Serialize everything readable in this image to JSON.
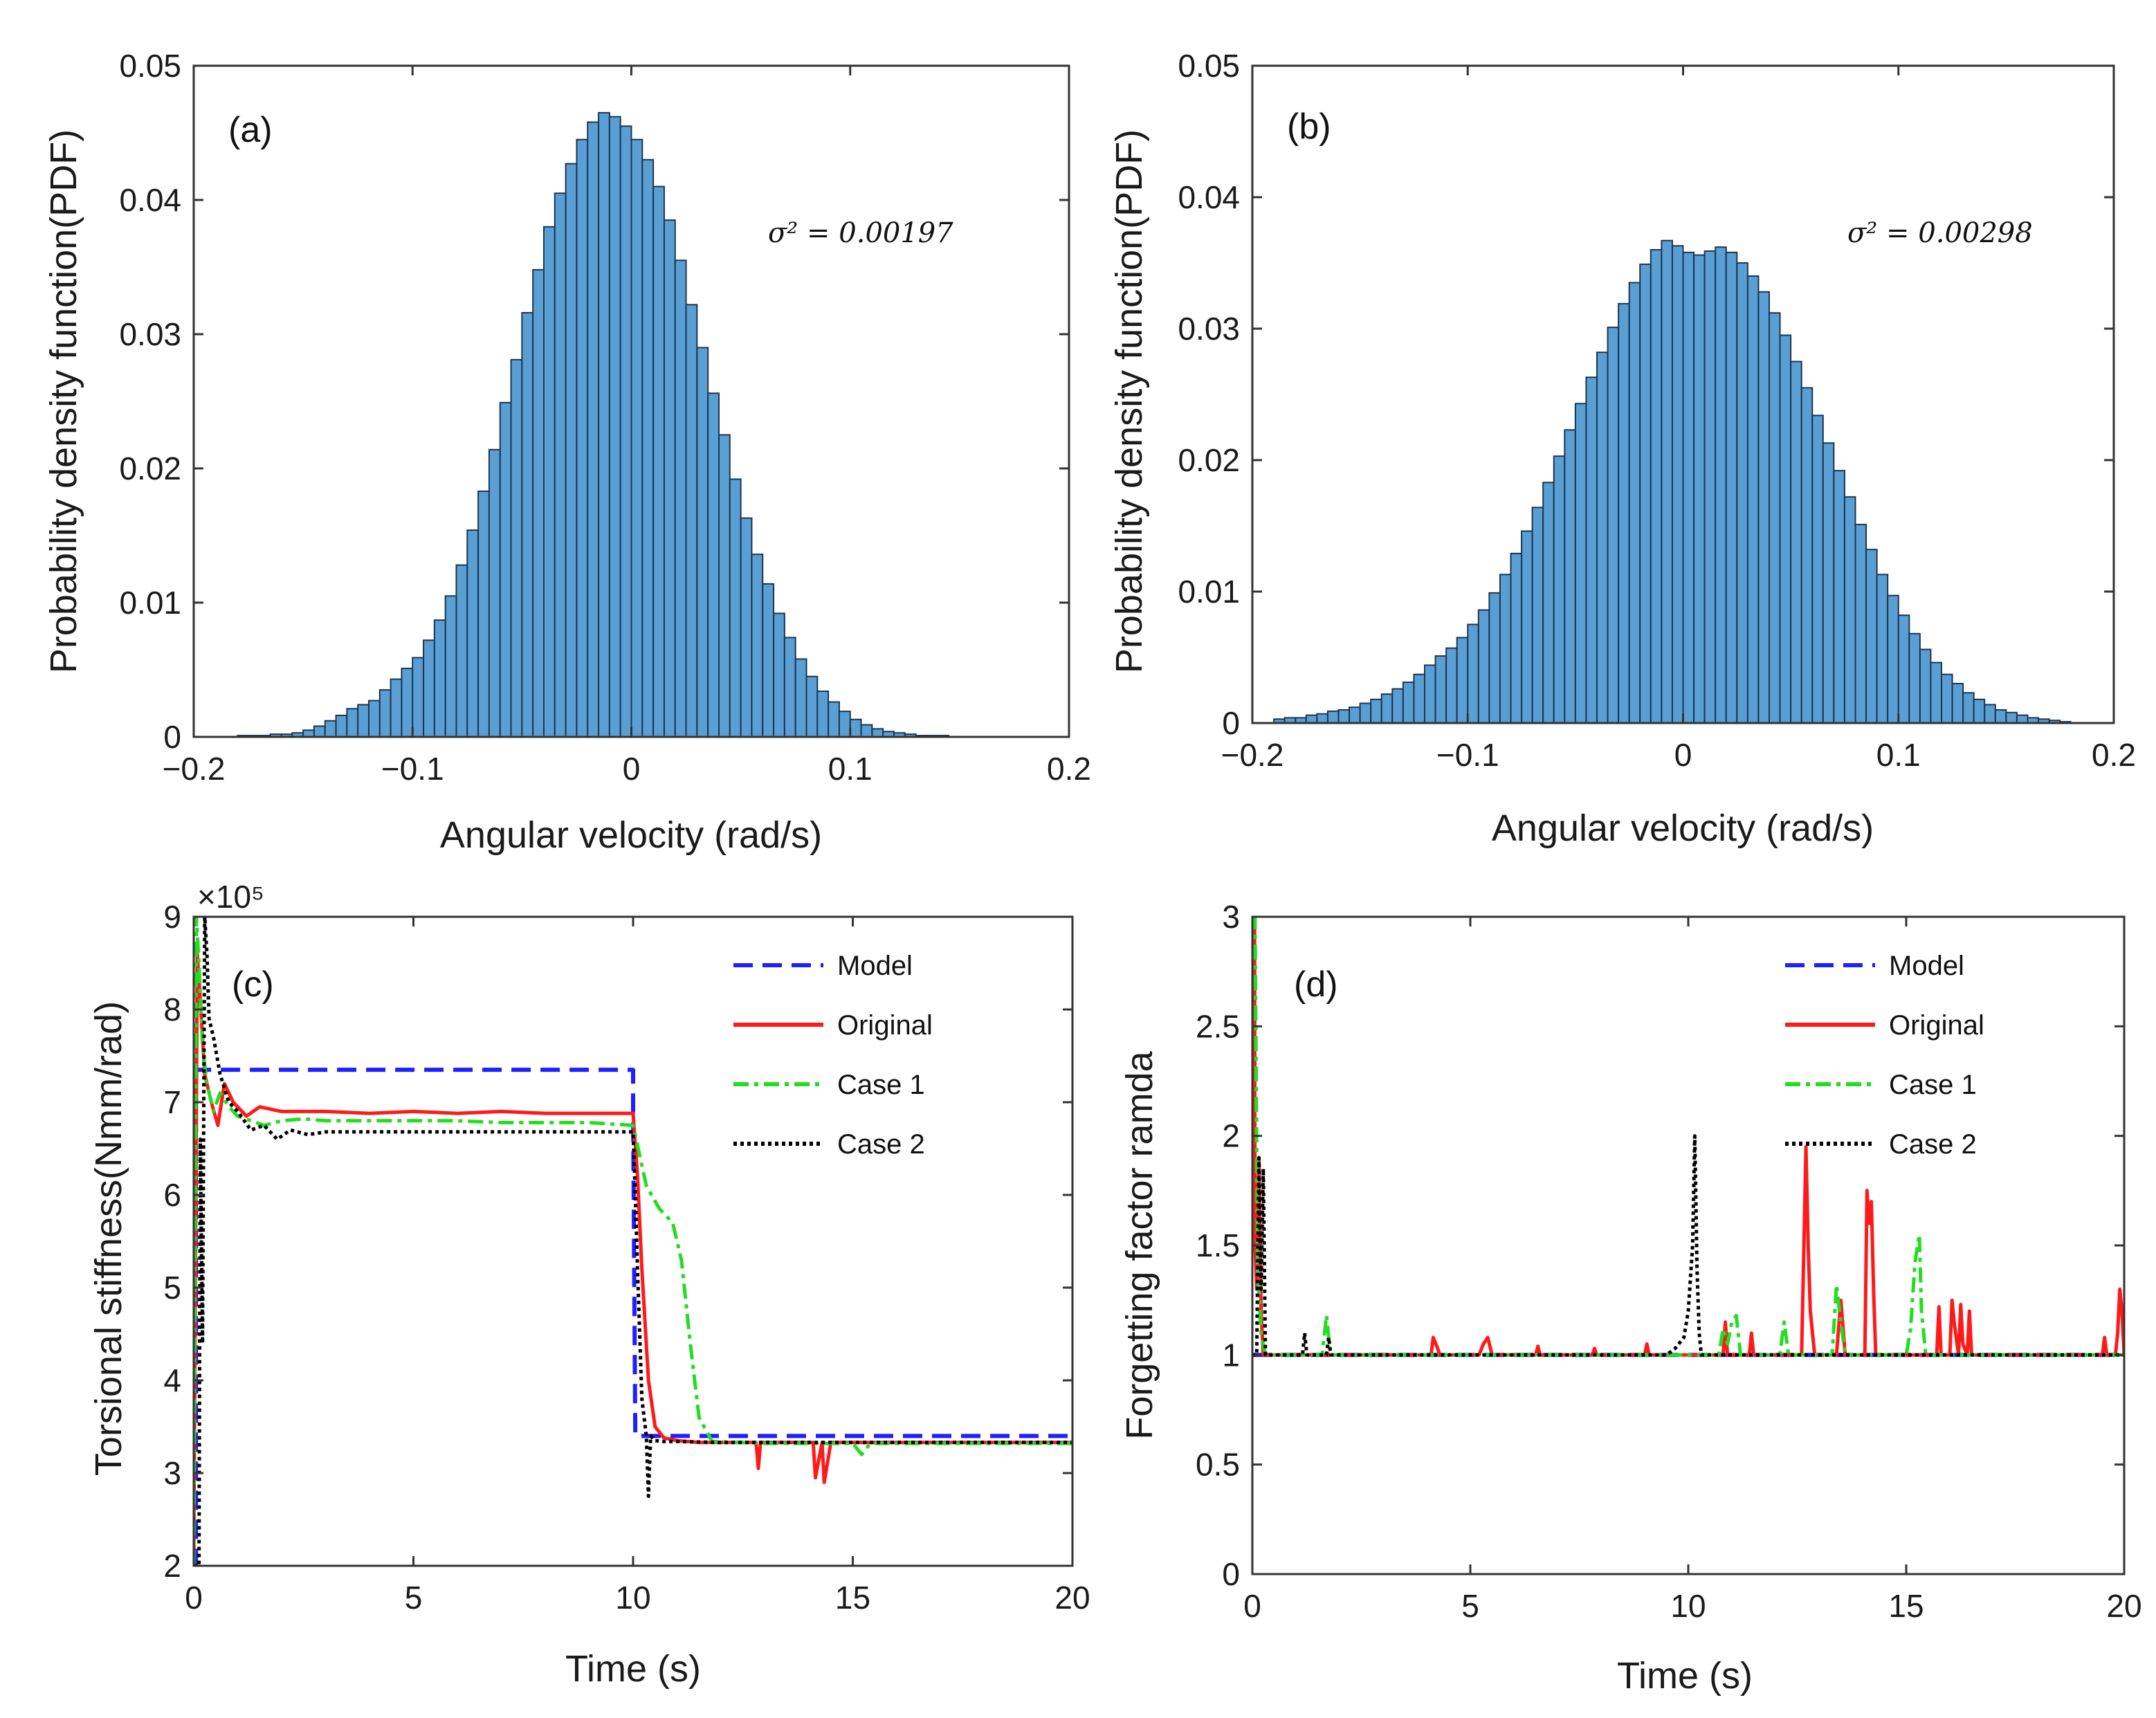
{
  "chart_data": [
    {
      "id": "a",
      "type": "histogram",
      "panel_label": "(a)",
      "xlabel": "Angular velocity (rad/s)",
      "ylabel": "Probability density function(PDF)",
      "xlim": [
        -0.2,
        0.2
      ],
      "ylim": [
        0,
        0.05
      ],
      "xticks": [
        -0.2,
        -0.1,
        0,
        0.1,
        0.2
      ],
      "xtick_labels": [
        "−0.2",
        "−0.1",
        "0",
        "0.1",
        "0.2"
      ],
      "yticks": [
        0,
        0.01,
        0.02,
        0.03,
        0.04,
        0.05
      ],
      "ytick_labels": [
        "0",
        "0.01",
        "0.02",
        "0.03",
        "0.04",
        "0.05"
      ],
      "annotation": "σ² = 0.00197",
      "bar_color": "#5a9fd4",
      "bin_start": -0.18,
      "bin_width": 0.005,
      "values": [
        0.0001,
        0.0001,
        0.0001,
        0.0002,
        0.0002,
        0.0003,
        0.0005,
        0.0008,
        0.0012,
        0.0016,
        0.0021,
        0.0024,
        0.0027,
        0.0035,
        0.0043,
        0.0051,
        0.0059,
        0.0072,
        0.0087,
        0.0105,
        0.0128,
        0.0154,
        0.0183,
        0.0214,
        0.0249,
        0.0281,
        0.0316,
        0.0348,
        0.038,
        0.0405,
        0.0427,
        0.0445,
        0.0458,
        0.0465,
        0.0462,
        0.0455,
        0.0445,
        0.043,
        0.041,
        0.0385,
        0.0355,
        0.0322,
        0.029,
        0.0256,
        0.0225,
        0.0192,
        0.0163,
        0.0136,
        0.0114,
        0.0092,
        0.0074,
        0.0058,
        0.0045,
        0.0034,
        0.0026,
        0.0019,
        0.0013,
        0.0009,
        0.0006,
        0.0004,
        0.0003,
        0.0002,
        0.0001,
        0.0001,
        0.0001
      ]
    },
    {
      "id": "b",
      "type": "histogram",
      "panel_label": "(b)",
      "xlabel": "Angular velocity (rad/s)",
      "ylabel": "Probability density function(PDF)",
      "xlim": [
        -0.2,
        0.2
      ],
      "ylim": [
        0,
        0.05
      ],
      "xticks": [
        -0.2,
        -0.1,
        0,
        0.1,
        0.2
      ],
      "xtick_labels": [
        "−0.2",
        "−0.1",
        "0",
        "0.1",
        "0.2"
      ],
      "yticks": [
        0,
        0.01,
        0.02,
        0.03,
        0.04,
        0.05
      ],
      "ytick_labels": [
        "0",
        "0.01",
        "0.02",
        "0.03",
        "0.04",
        "0.05"
      ],
      "annotation": "σ² = 0.00298",
      "bar_color": "#5a9fd4",
      "bin_start": -0.19,
      "bin_width": 0.005,
      "values": [
        0.0003,
        0.0004,
        0.0004,
        0.0006,
        0.0007,
        0.0009,
        0.001,
        0.0012,
        0.0015,
        0.0018,
        0.0022,
        0.0026,
        0.0031,
        0.0037,
        0.0044,
        0.0051,
        0.0057,
        0.0065,
        0.0075,
        0.0086,
        0.0099,
        0.0113,
        0.0129,
        0.0146,
        0.0164,
        0.0183,
        0.0203,
        0.0223,
        0.0243,
        0.0263,
        0.0282,
        0.0301,
        0.0319,
        0.0335,
        0.0349,
        0.036,
        0.0367,
        0.0363,
        0.0358,
        0.0356,
        0.0359,
        0.0362,
        0.0358,
        0.035,
        0.034,
        0.0328,
        0.0312,
        0.0295,
        0.0275,
        0.0255,
        0.0234,
        0.0213,
        0.0192,
        0.0172,
        0.0151,
        0.0132,
        0.0113,
        0.0097,
        0.0082,
        0.0068,
        0.0056,
        0.0046,
        0.0037,
        0.003,
        0.0023,
        0.0018,
        0.0014,
        0.001,
        0.0008,
        0.0006,
        0.0004,
        0.0003,
        0.0002,
        0.0001
      ]
    },
    {
      "id": "c",
      "type": "line",
      "panel_label": "(c)",
      "xlabel": "Time (s)",
      "ylabel": "Torsional stiffness(Nmm/rad)",
      "exponent_label": "×10⁵",
      "xlim": [
        0,
        20
      ],
      "ylim": [
        2,
        9
      ],
      "xticks": [
        0,
        5,
        10,
        15,
        20
      ],
      "xtick_labels": [
        "0",
        "5",
        "10",
        "15",
        "20"
      ],
      "yticks": [
        2,
        3,
        4,
        5,
        6,
        7,
        8,
        9
      ],
      "ytick_labels": [
        "2",
        "3",
        "4",
        "5",
        "6",
        "7",
        "8",
        "9"
      ],
      "legend_position": "top-right",
      "series": [
        {
          "name": "Model",
          "color": "#1f1fff",
          "dash": "28,14",
          "x": [
            0,
            0.05,
            0.05,
            10,
            10,
            10.05,
            10.05,
            20
          ],
          "y": [
            2,
            2,
            7.35,
            7.35,
            6.9,
            3.4,
            3.4,
            3.4
          ]
        },
        {
          "name": "Original",
          "color": "#ff1a1a",
          "dash": "",
          "x": [
            0,
            0.08,
            0.15,
            0.25,
            0.4,
            0.55,
            0.7,
            0.9,
            1.2,
            1.5,
            2,
            3,
            4,
            5,
            6,
            7,
            8,
            9,
            10,
            10.1,
            10.2,
            10.35,
            10.5,
            10.7,
            11,
            11.5,
            12,
            12.8,
            12.85,
            12.9,
            13.5,
            14.1,
            14.15,
            14.3,
            14.35,
            14.5,
            15,
            16,
            17,
            18,
            19,
            20
          ],
          "y": [
            2,
            8.6,
            8.1,
            7.3,
            7.0,
            6.75,
            7.2,
            7.0,
            6.85,
            6.95,
            6.9,
            6.9,
            6.88,
            6.9,
            6.88,
            6.9,
            6.88,
            6.88,
            6.88,
            6.2,
            5.2,
            4.0,
            3.5,
            3.38,
            3.35,
            3.33,
            3.33,
            3.33,
            3.05,
            3.33,
            3.33,
            3.33,
            2.95,
            3.33,
            2.9,
            3.33,
            3.33,
            3.33,
            3.33,
            3.33,
            3.33,
            3.33
          ]
        },
        {
          "name": "Case 1",
          "color": "#22dd22",
          "dash": "22,8,6,8",
          "x": [
            0,
            0.06,
            0.12,
            0.2,
            0.3,
            0.45,
            0.6,
            0.8,
            1.0,
            1.3,
            1.6,
            2.0,
            2.5,
            3,
            4,
            5,
            6,
            7,
            8,
            9,
            10,
            10.3,
            10.6,
            10.9,
            11.1,
            11.3,
            11.5,
            11.8,
            12.5,
            13,
            14,
            15,
            15.2,
            15.4,
            16,
            17,
            18,
            19,
            20
          ],
          "y": [
            2,
            9,
            8.5,
            7.6,
            7.2,
            6.9,
            7.1,
            6.95,
            6.85,
            6.8,
            6.75,
            6.8,
            6.82,
            6.8,
            6.8,
            6.8,
            6.8,
            6.78,
            6.78,
            6.78,
            6.75,
            6.1,
            5.85,
            5.7,
            5.3,
            4.4,
            3.6,
            3.34,
            3.33,
            3.32,
            3.32,
            3.32,
            3.2,
            3.32,
            3.32,
            3.32,
            3.32,
            3.32,
            3.32
          ]
        },
        {
          "name": "Case 2",
          "color": "#000000",
          "dash": "5,5",
          "x": [
            0,
            0.12,
            0.15,
            0.2,
            0.25,
            0.3,
            0.35,
            0.45,
            0.6,
            0.8,
            1.0,
            1.3,
            1.6,
            1.9,
            2.2,
            2.6,
            3,
            4,
            5,
            6,
            7,
            8,
            9,
            10,
            10.05,
            10.1,
            10.2,
            10.3,
            10.35,
            10.4,
            10.5,
            10.7,
            11,
            12,
            13,
            14,
            15,
            16,
            17,
            18,
            19,
            20
          ],
          "y": [
            2,
            2,
            6.6,
            4.4,
            9,
            8.6,
            7.9,
            7.7,
            7.3,
            7.0,
            6.9,
            6.7,
            6.75,
            6.6,
            6.7,
            6.65,
            6.68,
            6.68,
            6.68,
            6.68,
            6.68,
            6.68,
            6.68,
            6.68,
            6.0,
            5.2,
            3.8,
            3.4,
            2.75,
            3.4,
            3.35,
            3.34,
            3.34,
            3.33,
            3.33,
            3.33,
            3.33,
            3.33,
            3.33,
            3.33,
            3.33,
            3.33
          ]
        }
      ]
    },
    {
      "id": "d",
      "type": "line",
      "panel_label": "(d)",
      "xlabel": "Time (s)",
      "ylabel": "Forgetting factor ramda",
      "xlim": [
        0,
        20
      ],
      "ylim": [
        0,
        3
      ],
      "xticks": [
        0,
        5,
        10,
        15,
        20
      ],
      "xtick_labels": [
        "0",
        "5",
        "10",
        "15",
        "20"
      ],
      "yticks": [
        0,
        0.5,
        1,
        1.5,
        2,
        2.5,
        3
      ],
      "ytick_labels": [
        "0",
        "0.5",
        "1",
        "1.5",
        "2",
        "2.5",
        "3"
      ],
      "legend_position": "top-right",
      "series": [
        {
          "name": "Model",
          "color": "#1f1fff",
          "dash": "28,14",
          "x": [
            0,
            20
          ],
          "y": [
            1,
            1
          ]
        },
        {
          "name": "Original",
          "color": "#ff1a1a",
          "dash": "",
          "x": [
            0,
            0.05,
            0.06,
            0.1,
            0.15,
            0.2,
            0.25,
            4.1,
            4.15,
            4.25,
            4.3,
            5.2,
            5.3,
            5.4,
            5.5,
            6.5,
            6.55,
            6.6,
            7.8,
            7.85,
            7.9,
            9.0,
            9.05,
            9.1,
            10.8,
            10.85,
            10.9,
            11.4,
            11.45,
            11.5,
            12.6,
            12.7,
            12.75,
            12.8,
            12.9,
            13.4,
            13.5,
            13.6,
            14.05,
            14.1,
            14.15,
            14.2,
            14.25,
            14.3,
            15.7,
            15.75,
            15.8,
            16.0,
            16.05,
            16.1,
            16.2,
            16.25,
            16.3,
            16.4,
            16.45,
            16.5,
            19.5,
            19.55,
            19.6,
            19.8,
            19.85,
            19.9,
            19.95,
            20
          ],
          "y": [
            3,
            3,
            1.5,
            1.3,
            1.9,
            1.2,
            1,
            1,
            1.08,
            1.03,
            1,
            1,
            1.05,
            1.08,
            1,
            1,
            1.04,
            1,
            1,
            1.03,
            1,
            1,
            1.05,
            1,
            1,
            1.15,
            1,
            1,
            1.1,
            1,
            1,
            1.95,
            1.5,
            1.2,
            1,
            1,
            1.25,
            1,
            1,
            1.75,
            1.6,
            1.7,
            1.3,
            1,
            1,
            1.22,
            1,
            1,
            1.25,
            1.15,
            1,
            1.23,
            1.05,
            1,
            1.2,
            1,
            1,
            1.08,
            1,
            1,
            1.1,
            1.3,
            1.2,
            1
          ]
        },
        {
          "name": "Case 1",
          "color": "#22dd22",
          "dash": "22,8,6,8",
          "x": [
            0,
            0.06,
            0.12,
            0.2,
            0.3,
            1.6,
            1.7,
            1.75,
            1.8,
            10.7,
            10.8,
            10.9,
            11.0,
            11.1,
            11.2,
            12.1,
            12.2,
            12.3,
            13.3,
            13.4,
            13.5,
            13.6,
            15.0,
            15.1,
            15.2,
            15.3,
            15.35,
            15.45,
            20
          ],
          "y": [
            3,
            3,
            1.4,
            1.1,
            1,
            1,
            1.18,
            1.08,
            1,
            1,
            1.12,
            1.05,
            1.15,
            1.18,
            1,
            1,
            1.15,
            1,
            1,
            1.32,
            1.15,
            1,
            1,
            1.12,
            1.42,
            1.55,
            1.2,
            1,
            1
          ]
        },
        {
          "name": "Case 2",
          "color": "#000000",
          "dash": "5,5",
          "x": [
            0,
            0.1,
            0.15,
            0.2,
            0.25,
            0.3,
            1.15,
            1.2,
            1.25,
            1.7,
            1.75,
            1.8,
            9.5,
            9.7,
            9.9,
            10.0,
            10.1,
            10.15,
            10.2,
            10.25,
            10.3,
            20
          ],
          "y": [
            1,
            1,
            1.9,
            1.3,
            1.85,
            1,
            1,
            1.1,
            1,
            1,
            1.08,
            1,
            1,
            1.03,
            1.08,
            1.2,
            1.5,
            2.0,
            1.4,
            1.1,
            1,
            1
          ]
        }
      ]
    }
  ]
}
